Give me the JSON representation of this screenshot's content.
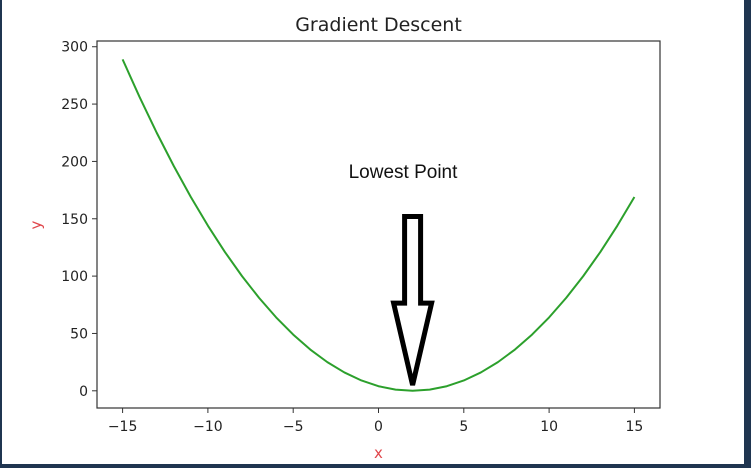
{
  "chart_data": {
    "type": "line",
    "title": "Gradient Descent",
    "xlabel": "x",
    "ylabel": "y",
    "xlim": [
      -16.5,
      16.5
    ],
    "ylim": [
      -15,
      305
    ],
    "xticks": [
      -15,
      -10,
      -5,
      0,
      5,
      10,
      15
    ],
    "xtick_labels": [
      "−15",
      "−10",
      "−5",
      "0",
      "5",
      "10",
      "15"
    ],
    "yticks": [
      0,
      50,
      100,
      150,
      200,
      250,
      300
    ],
    "ytick_labels": [
      "0",
      "50",
      "100",
      "150",
      "200",
      "250",
      "300"
    ],
    "grid": false,
    "series": [
      {
        "color": "#2ca02c",
        "x": [
          -15,
          -14,
          -13,
          -12,
          -11,
          -10,
          -9,
          -8,
          -7,
          -6,
          -5,
          -4,
          -3,
          -2,
          -1,
          0,
          1,
          2,
          3,
          4,
          5,
          6,
          7,
          8,
          9,
          10,
          11,
          12,
          13,
          14,
          15
        ],
        "y": [
          289,
          256,
          225,
          196,
          169,
          144,
          121,
          100,
          81,
          64,
          49,
          36,
          25,
          16,
          9,
          4,
          1,
          0,
          1,
          4,
          9,
          16,
          25,
          36,
          49,
          64,
          81,
          100,
          121,
          144,
          169
        ]
      }
    ],
    "annotation": {
      "text": "Lowest Point",
      "arrow_target": [
        2,
        5
      ],
      "arrow_tail": [
        2,
        152
      ]
    },
    "colors": {
      "line": "#2ca02c",
      "axis_label": "#e0474c",
      "frame": "#1f3550"
    }
  }
}
